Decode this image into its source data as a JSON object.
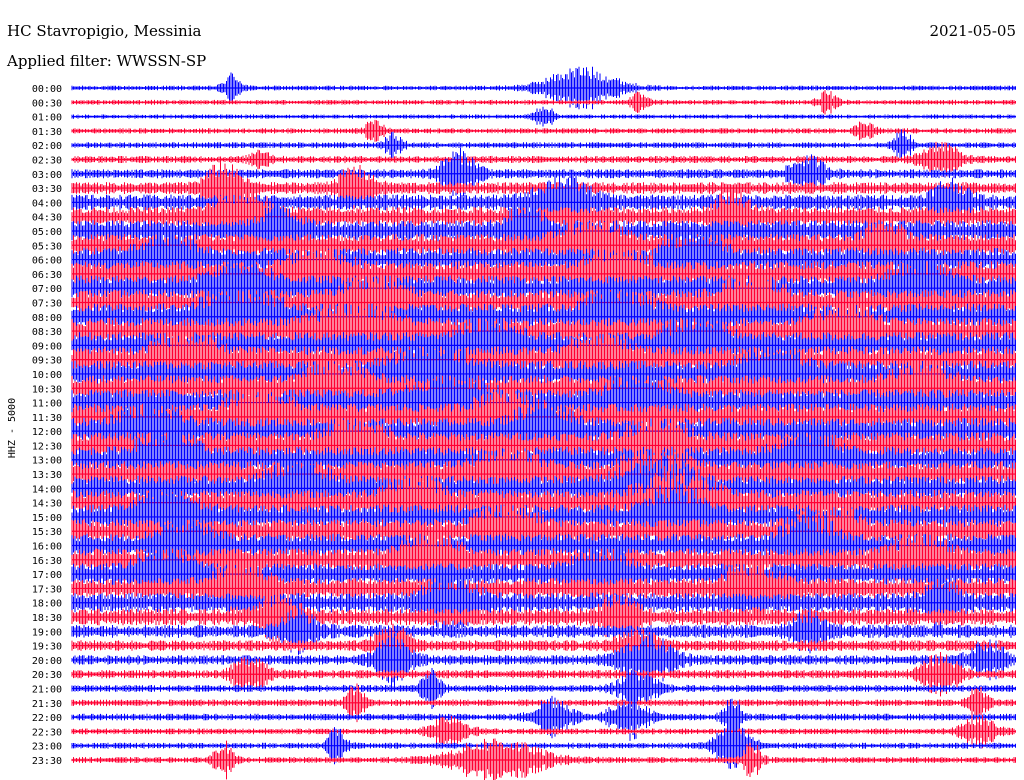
{
  "station": {
    "title": "HC Stavropigio, Messinia",
    "filter": "Applied filter: WWSSN-SP",
    "date": "2021-05-05",
    "channel": "HHZ - 5000"
  },
  "colors": {
    "odd_trace": "#0000ff",
    "even_trace": "#ff0033",
    "text": "#000000",
    "background": "#ffffff"
  },
  "chart_data": {
    "type": "line",
    "title": "HC Stavropigio, Messinia",
    "subtitle": "Applied filter: WWSSN-SP",
    "ylabel": "HHZ - 5000",
    "xlabel": "",
    "grid": false,
    "legend": "none",
    "row_interval_minutes": 30,
    "rows": [
      {
        "label": "00:00",
        "activity": 0.1,
        "bursts": [
          {
            "at": 0.54,
            "width": 0.04,
            "amp": 1.0
          },
          {
            "at": 0.17,
            "width": 0.01,
            "amp": 0.7
          }
        ]
      },
      {
        "label": "00:30",
        "activity": 0.1,
        "bursts": [
          {
            "at": 0.8,
            "width": 0.01,
            "amp": 0.5
          },
          {
            "at": 0.6,
            "width": 0.01,
            "amp": 0.4
          }
        ]
      },
      {
        "label": "01:00",
        "activity": 0.08,
        "bursts": [
          {
            "at": 0.5,
            "width": 0.01,
            "amp": 0.6
          }
        ]
      },
      {
        "label": "01:30",
        "activity": 0.12,
        "bursts": [
          {
            "at": 0.32,
            "width": 0.01,
            "amp": 0.5
          },
          {
            "at": 0.84,
            "width": 0.01,
            "amp": 0.5
          }
        ]
      },
      {
        "label": "02:00",
        "activity": 0.15,
        "bursts": [
          {
            "at": 0.34,
            "width": 0.01,
            "amp": 0.5
          },
          {
            "at": 0.88,
            "width": 0.01,
            "amp": 0.7
          }
        ]
      },
      {
        "label": "02:30",
        "activity": 0.2,
        "bursts": [
          {
            "at": 0.92,
            "width": 0.02,
            "amp": 0.8
          },
          {
            "at": 0.2,
            "width": 0.01,
            "amp": 0.5
          }
        ]
      },
      {
        "label": "03:00",
        "activity": 0.28,
        "bursts": [
          {
            "at": 0.41,
            "width": 0.02,
            "amp": 1.0
          },
          {
            "at": 0.78,
            "width": 0.02,
            "amp": 0.7
          }
        ]
      },
      {
        "label": "03:30",
        "activity": 0.4,
        "bursts": [
          {
            "at": 0.16,
            "width": 0.02,
            "amp": 1.0
          },
          {
            "at": 0.3,
            "width": 0.02,
            "amp": 0.8
          }
        ]
      },
      {
        "label": "04:00",
        "activity": 0.55,
        "bursts": [
          {
            "at": 0.52,
            "width": 0.03,
            "amp": 1.0
          },
          {
            "at": 0.93,
            "width": 0.02,
            "amp": 0.8
          }
        ]
      },
      {
        "label": "04:30",
        "activity": 0.7,
        "bursts": [
          {
            "at": 0.18,
            "width": 0.03,
            "amp": 1.0
          },
          {
            "at": 0.7,
            "width": 0.02,
            "amp": 0.9
          }
        ]
      },
      {
        "label": "05:00",
        "activity": 0.8,
        "bursts": [
          {
            "at": 0.22,
            "width": 0.02,
            "amp": 1.0
          },
          {
            "at": 0.48,
            "width": 0.02,
            "amp": 0.9
          }
        ]
      },
      {
        "label": "05:30",
        "activity": 0.85,
        "bursts": [
          {
            "at": 0.55,
            "width": 0.03,
            "amp": 1.0
          },
          {
            "at": 0.86,
            "width": 0.02,
            "amp": 0.9
          }
        ]
      },
      {
        "label": "06:00",
        "activity": 0.9,
        "bursts": [
          {
            "at": 0.1,
            "width": 0.03,
            "amp": 1.0
          },
          {
            "at": 0.66,
            "width": 0.03,
            "amp": 1.0
          }
        ]
      },
      {
        "label": "06:30",
        "activity": 0.95,
        "bursts": [
          {
            "at": 0.26,
            "width": 0.03,
            "amp": 1.0
          },
          {
            "at": 0.58,
            "width": 0.03,
            "amp": 1.0
          }
        ]
      },
      {
        "label": "07:00",
        "activity": 0.95,
        "bursts": [
          {
            "at": 0.18,
            "width": 0.03,
            "amp": 1.0
          },
          {
            "at": 0.9,
            "width": 0.03,
            "amp": 1.0
          }
        ]
      },
      {
        "label": "07:30",
        "activity": 0.95,
        "bursts": [
          {
            "at": 0.32,
            "width": 0.03,
            "amp": 1.0
          },
          {
            "at": 0.72,
            "width": 0.03,
            "amp": 1.0
          }
        ]
      },
      {
        "label": "08:00",
        "activity": 1.0,
        "bursts": [
          {
            "at": 0.18,
            "width": 0.04,
            "amp": 1.0
          },
          {
            "at": 0.58,
            "width": 0.03,
            "amp": 1.0
          }
        ]
      },
      {
        "label": "08:30",
        "activity": 1.0,
        "bursts": [
          {
            "at": 0.3,
            "width": 0.04,
            "amp": 1.0
          },
          {
            "at": 0.82,
            "width": 0.03,
            "amp": 1.0
          }
        ]
      },
      {
        "label": "09:00",
        "activity": 1.0,
        "bursts": [
          {
            "at": 0.44,
            "width": 0.03,
            "amp": 1.0
          },
          {
            "at": 0.66,
            "width": 0.03,
            "amp": 1.0
          }
        ]
      },
      {
        "label": "09:30",
        "activity": 1.0,
        "bursts": [
          {
            "at": 0.56,
            "width": 0.03,
            "amp": 1.0
          },
          {
            "at": 0.12,
            "width": 0.03,
            "amp": 1.0
          }
        ]
      },
      {
        "label": "10:00",
        "activity": 1.0,
        "bursts": [
          {
            "at": 0.38,
            "width": 0.04,
            "amp": 1.0
          },
          {
            "at": 0.74,
            "width": 0.03,
            "amp": 1.0
          }
        ]
      },
      {
        "label": "10:30",
        "activity": 1.0,
        "bursts": [
          {
            "at": 0.28,
            "width": 0.03,
            "amp": 1.0
          },
          {
            "at": 0.9,
            "width": 0.03,
            "amp": 1.0
          }
        ]
      },
      {
        "label": "11:00",
        "activity": 1.0,
        "bursts": [
          {
            "at": 0.4,
            "width": 0.04,
            "amp": 1.0
          },
          {
            "at": 0.6,
            "width": 0.03,
            "amp": 1.0
          }
        ]
      },
      {
        "label": "11:30",
        "activity": 1.0,
        "bursts": [
          {
            "at": 0.2,
            "width": 0.03,
            "amp": 1.0
          },
          {
            "at": 0.46,
            "width": 0.03,
            "amp": 1.0
          }
        ]
      },
      {
        "label": "12:00",
        "activity": 1.0,
        "bursts": [
          {
            "at": 0.08,
            "width": 0.03,
            "amp": 1.0
          },
          {
            "at": 0.5,
            "width": 0.03,
            "amp": 1.0
          }
        ]
      },
      {
        "label": "12:30",
        "activity": 1.0,
        "bursts": [
          {
            "at": 0.3,
            "width": 0.03,
            "amp": 1.0
          },
          {
            "at": 0.62,
            "width": 0.03,
            "amp": 1.0
          }
        ]
      },
      {
        "label": "13:00",
        "activity": 0.98,
        "bursts": [
          {
            "at": 0.1,
            "width": 0.03,
            "amp": 1.0
          },
          {
            "at": 0.78,
            "width": 0.03,
            "amp": 1.0
          }
        ]
      },
      {
        "label": "13:30",
        "activity": 0.98,
        "bursts": [
          {
            "at": 0.46,
            "width": 0.03,
            "amp": 1.0
          },
          {
            "at": 0.62,
            "width": 0.03,
            "amp": 1.0
          }
        ]
      },
      {
        "label": "14:00",
        "activity": 0.95,
        "bursts": [
          {
            "at": 0.62,
            "width": 0.04,
            "amp": 1.0
          },
          {
            "at": 0.24,
            "width": 0.03,
            "amp": 1.0
          }
        ]
      },
      {
        "label": "14:30",
        "activity": 0.95,
        "bursts": [
          {
            "at": 0.64,
            "width": 0.04,
            "amp": 1.0
          },
          {
            "at": 0.36,
            "width": 0.03,
            "amp": 1.0
          }
        ]
      },
      {
        "label": "15:00",
        "activity": 0.92,
        "bursts": [
          {
            "at": 0.64,
            "width": 0.03,
            "amp": 1.0
          },
          {
            "at": 0.1,
            "width": 0.03,
            "amp": 1.0
          }
        ]
      },
      {
        "label": "15:30",
        "activity": 0.9,
        "bursts": [
          {
            "at": 0.8,
            "width": 0.03,
            "amp": 1.0
          },
          {
            "at": 0.46,
            "width": 0.03,
            "amp": 1.0
          }
        ]
      },
      {
        "label": "16:00",
        "activity": 0.88,
        "bursts": [
          {
            "at": 0.78,
            "width": 0.03,
            "amp": 1.0
          },
          {
            "at": 0.12,
            "width": 0.03,
            "amp": 0.9
          }
        ]
      },
      {
        "label": "16:30",
        "activity": 0.85,
        "bursts": [
          {
            "at": 0.38,
            "width": 0.03,
            "amp": 1.0
          },
          {
            "at": 0.9,
            "width": 0.03,
            "amp": 0.9
          }
        ]
      },
      {
        "label": "17:00",
        "activity": 0.8,
        "bursts": [
          {
            "at": 0.1,
            "width": 0.03,
            "amp": 1.0
          },
          {
            "at": 0.56,
            "width": 0.03,
            "amp": 0.9
          }
        ]
      },
      {
        "label": "17:30",
        "activity": 0.75,
        "bursts": [
          {
            "at": 0.18,
            "width": 0.03,
            "amp": 1.0
          },
          {
            "at": 0.72,
            "width": 0.03,
            "amp": 0.9
          }
        ]
      },
      {
        "label": "18:00",
        "activity": 0.7,
        "bursts": [
          {
            "at": 0.4,
            "width": 0.03,
            "amp": 1.0
          },
          {
            "at": 0.92,
            "width": 0.02,
            "amp": 0.8
          }
        ]
      },
      {
        "label": "18:30",
        "activity": 0.6,
        "bursts": [
          {
            "at": 0.22,
            "width": 0.02,
            "amp": 0.9
          },
          {
            "at": 0.58,
            "width": 0.02,
            "amp": 0.8
          }
        ]
      },
      {
        "label": "19:00",
        "activity": 0.45,
        "bursts": [
          {
            "at": 0.24,
            "width": 0.02,
            "amp": 0.8
          },
          {
            "at": 0.78,
            "width": 0.02,
            "amp": 0.7
          }
        ]
      },
      {
        "label": "19:30",
        "activity": 0.35,
        "bursts": [
          {
            "at": 0.34,
            "width": 0.02,
            "amp": 0.8
          },
          {
            "at": 0.6,
            "width": 0.02,
            "amp": 0.7
          }
        ]
      },
      {
        "label": "20:00",
        "activity": 0.3,
        "bursts": [
          {
            "at": 0.34,
            "width": 0.02,
            "amp": 1.0
          },
          {
            "at": 0.61,
            "width": 0.03,
            "amp": 1.0
          },
          {
            "at": 0.97,
            "width": 0.02,
            "amp": 0.8
          }
        ]
      },
      {
        "label": "20:30",
        "activity": 0.25,
        "bursts": [
          {
            "at": 0.19,
            "width": 0.02,
            "amp": 0.8
          },
          {
            "at": 0.92,
            "width": 0.02,
            "amp": 0.9
          }
        ]
      },
      {
        "label": "21:00",
        "activity": 0.2,
        "bursts": [
          {
            "at": 0.38,
            "width": 0.01,
            "amp": 0.9
          },
          {
            "at": 0.6,
            "width": 0.02,
            "amp": 0.9
          }
        ]
      },
      {
        "label": "21:30",
        "activity": 0.18,
        "bursts": [
          {
            "at": 0.3,
            "width": 0.01,
            "amp": 0.8
          },
          {
            "at": 0.96,
            "width": 0.01,
            "amp": 0.8
          }
        ]
      },
      {
        "label": "22:00",
        "activity": 0.18,
        "bursts": [
          {
            "at": 0.51,
            "width": 0.02,
            "amp": 1.0
          },
          {
            "at": 0.59,
            "width": 0.02,
            "amp": 1.0
          },
          {
            "at": 0.7,
            "width": 0.01,
            "amp": 0.9
          }
        ]
      },
      {
        "label": "22:30",
        "activity": 0.15,
        "bursts": [
          {
            "at": 0.4,
            "width": 0.02,
            "amp": 0.8
          },
          {
            "at": 0.96,
            "width": 0.02,
            "amp": 0.7
          }
        ]
      },
      {
        "label": "23:00",
        "activity": 0.15,
        "bursts": [
          {
            "at": 0.28,
            "width": 0.01,
            "amp": 0.9
          },
          {
            "at": 0.7,
            "width": 0.02,
            "amp": 1.0
          }
        ]
      },
      {
        "label": "23:30",
        "activity": 0.15,
        "bursts": [
          {
            "at": 0.45,
            "width": 0.05,
            "amp": 1.0
          },
          {
            "at": 0.16,
            "width": 0.01,
            "amp": 0.9
          },
          {
            "at": 0.72,
            "width": 0.01,
            "amp": 0.9
          }
        ]
      }
    ]
  }
}
